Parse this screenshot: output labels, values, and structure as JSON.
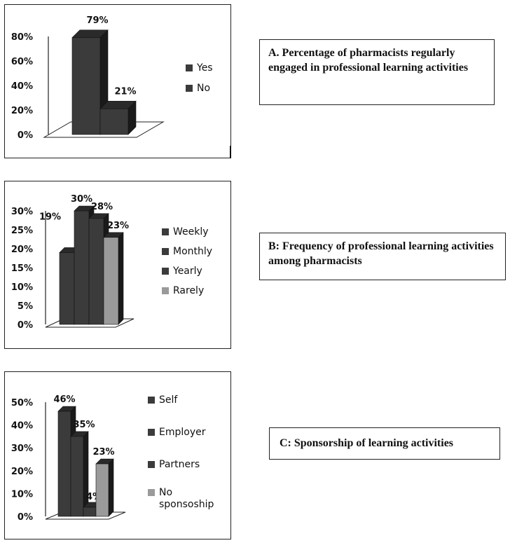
{
  "colors": {
    "bar_dark": "#3b3b3b",
    "bar_light": "#9a9a9a",
    "side_dark": "#1a1a1a",
    "top_dark": "#2a2a2a"
  },
  "panels": [
    {
      "caption": "A. Percentage of pharmacists regularly engaged in professional learning activities"
    },
    {
      "caption": "B: Frequency of professional learning activities among pharmacists"
    },
    {
      "caption": "C: Sponsorship of learning activities"
    }
  ],
  "chart_data": [
    {
      "type": "bar",
      "categories": [
        "Yes",
        "No"
      ],
      "values": [
        79,
        21
      ],
      "data_labels": [
        "79%",
        "21%"
      ],
      "yticks": [
        "0%",
        "20%",
        "40%",
        "60%",
        "80%"
      ],
      "ylim": [
        0,
        80
      ],
      "legend": [
        "Yes",
        "No"
      ],
      "legend_position": "right",
      "style": "3d-column"
    },
    {
      "type": "bar",
      "categories": [
        "Weekly",
        "Monthly",
        "Yearly",
        "Rarely"
      ],
      "values": [
        19,
        30,
        28,
        23
      ],
      "data_labels": [
        "19%",
        "30%",
        "28%",
        "23%"
      ],
      "yticks": [
        "0%",
        "5%",
        "10%",
        "15%",
        "20%",
        "25%",
        "30%"
      ],
      "ylim": [
        0,
        30
      ],
      "legend": [
        "Weekly",
        "Monthly",
        "Yearly",
        "Rarely"
      ],
      "legend_position": "right",
      "style": "3d-column"
    },
    {
      "type": "bar",
      "categories": [
        "Self",
        "Employer",
        "Partners",
        "No sponsoship"
      ],
      "values": [
        46,
        35,
        4,
        23
      ],
      "data_labels": [
        "46%",
        "35%",
        "4%",
        "23%"
      ],
      "yticks": [
        "0%",
        "10%",
        "20%",
        "30%",
        "40%",
        "50%"
      ],
      "ylim": [
        0,
        50
      ],
      "legend": [
        "Self",
        "Employer",
        "Partners",
        "No sponsoship"
      ],
      "legend_position": "right",
      "style": "3d-column"
    }
  ]
}
